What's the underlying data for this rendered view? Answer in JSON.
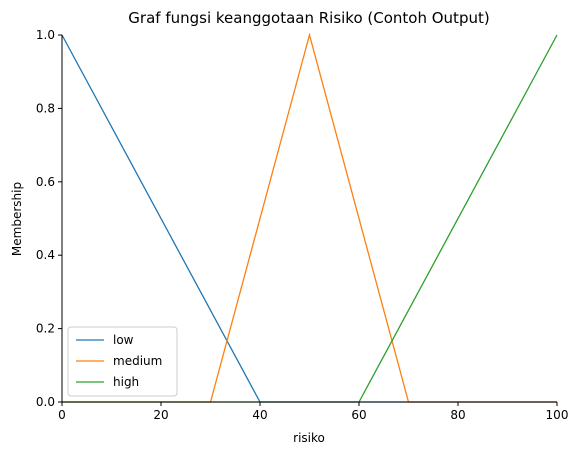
{
  "chart_data": {
    "type": "line",
    "title": "Graf fungsi keanggotaan Risiko (Contoh Output)",
    "xlabel": "risiko",
    "ylabel": "Membership",
    "xlim": [
      0,
      100
    ],
    "ylim": [
      0,
      1.0
    ],
    "xticks": [
      0,
      20,
      40,
      60,
      80,
      100
    ],
    "xtick_labels": [
      "0",
      "20",
      "40",
      "60",
      "80",
      "100"
    ],
    "yticks": [
      0.0,
      0.2,
      0.4,
      0.6,
      0.8,
      1.0
    ],
    "ytick_labels": [
      "0.0",
      "0.2",
      "0.4",
      "0.6",
      "0.8",
      "1.0"
    ],
    "grid": false,
    "legend_position": "lower-left",
    "series": [
      {
        "name": "low",
        "color": "#1f77b4",
        "x": [
          0,
          40,
          100
        ],
        "y": [
          1.0,
          0.0,
          0.0
        ]
      },
      {
        "name": "medium",
        "color": "#ff7f0e",
        "x": [
          0,
          30,
          50,
          70,
          100
        ],
        "y": [
          0.0,
          0.0,
          1.0,
          0.0,
          0.0
        ]
      },
      {
        "name": "high",
        "color": "#2ca02c",
        "x": [
          0,
          60,
          100
        ],
        "y": [
          0.0,
          0.0,
          1.0
        ]
      }
    ]
  }
}
